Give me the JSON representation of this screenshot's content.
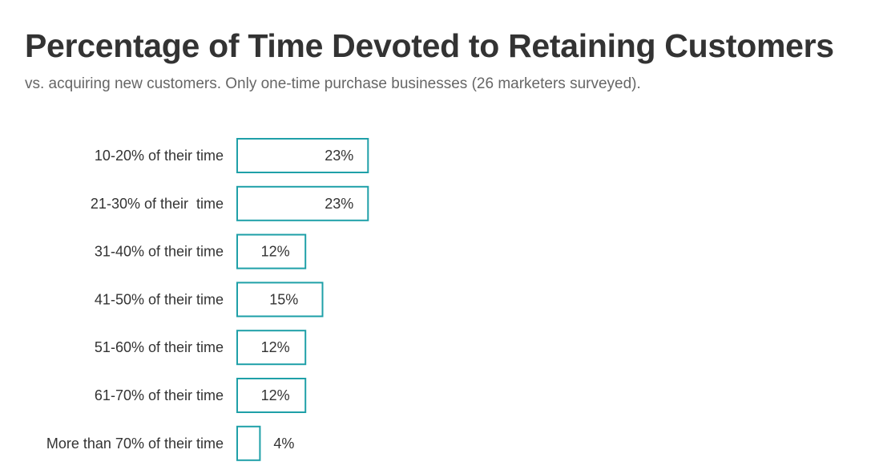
{
  "title": "Percentage of Time Devoted to Retaining Customers",
  "subtitle": "vs. acquiring new customers. Only one-time purchase businesses (26 marketers surveyed).",
  "colors": {
    "bar_stroke": "#1FA0A8",
    "bar_fill": "#FFFFFF",
    "text": "#333333",
    "subtitle": "#666666"
  },
  "chart_data": {
    "type": "bar",
    "orientation": "horizontal",
    "categories": [
      "10-20% of their time",
      "21-30% of their  time",
      "31-40% of their time",
      "41-50% of their time",
      "51-60% of their time",
      "61-70% of their time",
      "More than 70% of their time"
    ],
    "values": [
      23,
      23,
      12,
      15,
      12,
      12,
      4
    ],
    "value_labels": [
      "23%",
      "23%",
      "12%",
      "15%",
      "12%",
      "12%",
      "4%"
    ],
    "unit": "%",
    "xlim": [
      0,
      100
    ],
    "grid": false,
    "legend": "none"
  }
}
